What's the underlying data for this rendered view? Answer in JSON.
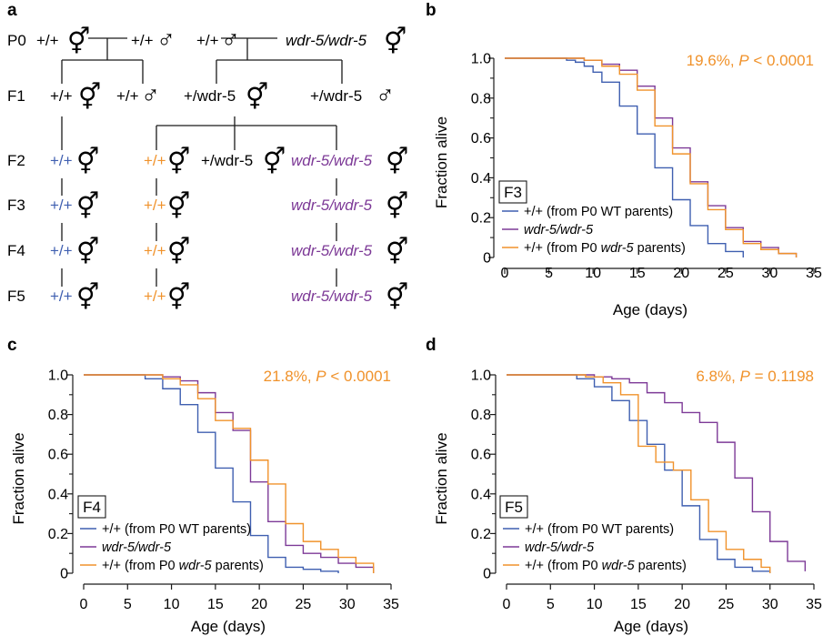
{
  "colors": {
    "wt": "#3f5fb0",
    "mut": "#7d3a97",
    "wtmut": "#f0922b",
    "stat": "#f0922b",
    "black": "#1a1a1a"
  },
  "panel_a": {
    "label": "a",
    "generations": [
      "P0",
      "F1",
      "F2",
      "F3",
      "F4",
      "F5"
    ],
    "p0": {
      "left_herm": "+/+",
      "left_male": "+/+",
      "right_male": "+/+",
      "right_herm": "wdr-5/wdr-5"
    },
    "f1": {
      "left_herm": "+/+",
      "left_male": "+/+",
      "right_herm": "+/wdr-5",
      "right_male": "+/wdr-5"
    },
    "f2": {
      "wt": "+/+",
      "wtmut": "+/+",
      "het": "+/wdr-5",
      "mut": "wdr-5/wdr-5"
    },
    "later": {
      "wt": "+/+",
      "wtmut": "+/+",
      "mut": "wdr-5/wdr-5"
    },
    "herm_symbol": "⚥",
    "male_symbol": "♂"
  },
  "chart_data": [
    {
      "panel": "b",
      "type": "line",
      "step": true,
      "xlabel": "Age (days)",
      "ylabel": "Fraction alive",
      "xlim": [
        0,
        35
      ],
      "ylim": [
        0,
        1.0
      ],
      "xticks": [
        "0",
        "5",
        "10",
        "15",
        "20",
        "25",
        "30",
        "35"
      ],
      "yticks": [
        "0",
        "0.2",
        "0.4",
        "0.6",
        "0.8",
        "1.0"
      ],
      "stat_pct": "19.6%, ",
      "stat_p": "P",
      "stat_rest": " < 0.0001",
      "box_label": "F3",
      "legend": [
        "+/+ (from P0 WT parents)",
        "wdr-5/wdr-5",
        "+/+ (from P0 ",
        "wdr-5",
        " parents)"
      ],
      "series": [
        {
          "key": "wt",
          "x": [
            0,
            7,
            8,
            9,
            10,
            11,
            13,
            15,
            17,
            19,
            21,
            23,
            25,
            27
          ],
          "y": [
            1.0,
            0.99,
            0.98,
            0.96,
            0.93,
            0.88,
            0.76,
            0.62,
            0.45,
            0.29,
            0.16,
            0.07,
            0.03,
            0.0
          ]
        },
        {
          "key": "mut",
          "x": [
            0,
            9,
            11,
            13,
            15,
            17,
            19,
            21,
            23,
            25,
            27,
            29,
            31,
            33
          ],
          "y": [
            1.0,
            0.99,
            0.97,
            0.94,
            0.86,
            0.7,
            0.55,
            0.38,
            0.26,
            0.15,
            0.08,
            0.05,
            0.02,
            0.0
          ]
        },
        {
          "key": "wtmut",
          "x": [
            0,
            9,
            11,
            13,
            15,
            17,
            19,
            21,
            23,
            25,
            27,
            29,
            31,
            33
          ],
          "y": [
            1.0,
            0.99,
            0.96,
            0.92,
            0.84,
            0.66,
            0.52,
            0.37,
            0.24,
            0.14,
            0.07,
            0.04,
            0.02,
            0.0
          ]
        }
      ]
    },
    {
      "panel": "c",
      "type": "line",
      "step": true,
      "xlabel": "Age (days)",
      "ylabel": "Fraction alive",
      "xlim": [
        0,
        35
      ],
      "ylim": [
        0,
        1.0
      ],
      "xticks": [
        "0",
        "5",
        "10",
        "15",
        "20",
        "25",
        "30",
        "35"
      ],
      "yticks": [
        "0",
        "0.2",
        "0.4",
        "0.6",
        "0.8",
        "1.0"
      ],
      "stat_pct": "21.8%, ",
      "stat_p": "P",
      "stat_rest": " < 0.0001",
      "box_label": "F4",
      "legend": [
        "+/+ (from P0 WT parents)",
        "wdr-5/wdr-5",
        "+/+ (from P0 ",
        "wdr-5",
        " parents)"
      ],
      "series": [
        {
          "key": "wt",
          "x": [
            0,
            7,
            9,
            11,
            13,
            15,
            17,
            19,
            21,
            23,
            25,
            27,
            29
          ],
          "y": [
            1.0,
            0.98,
            0.93,
            0.85,
            0.71,
            0.53,
            0.36,
            0.19,
            0.08,
            0.03,
            0.02,
            0.01,
            0.0
          ]
        },
        {
          "key": "mut",
          "x": [
            0,
            9,
            11,
            13,
            15,
            17,
            19,
            21,
            23,
            25,
            27,
            29,
            31,
            33
          ],
          "y": [
            1.0,
            0.99,
            0.97,
            0.91,
            0.81,
            0.72,
            0.46,
            0.26,
            0.14,
            0.1,
            0.08,
            0.05,
            0.03,
            0.0
          ]
        },
        {
          "key": "wtmut",
          "x": [
            0,
            9,
            11,
            13,
            15,
            17,
            19,
            21,
            23,
            25,
            27,
            29,
            31,
            33
          ],
          "y": [
            1.0,
            0.98,
            0.95,
            0.88,
            0.77,
            0.73,
            0.57,
            0.45,
            0.25,
            0.16,
            0.12,
            0.08,
            0.05,
            0.0
          ]
        }
      ]
    },
    {
      "panel": "d",
      "type": "line",
      "step": true,
      "xlabel": "Age (days)",
      "ylabel": "Fraction alive",
      "xlim": [
        0,
        35
      ],
      "ylim": [
        0,
        1.0
      ],
      "xticks": [
        "0",
        "5",
        "10",
        "15",
        "20",
        "25",
        "30",
        "35"
      ],
      "yticks": [
        "0",
        "0.2",
        "0.4",
        "0.6",
        "0.8",
        "1.0"
      ],
      "stat_pct": "6.8%, ",
      "stat_p": "P",
      "stat_rest": " = 0.1198",
      "box_label": "F5",
      "legend": [
        "+/+ (from P0 WT parents)",
        "wdr-5/wdr-5",
        "+/+ (from P0 ",
        "wdr-5",
        " parents)"
      ],
      "series": [
        {
          "key": "wt",
          "x": [
            0,
            8,
            10,
            12,
            14,
            16,
            18,
            20,
            22,
            24,
            26,
            28,
            30
          ],
          "y": [
            1.0,
            0.98,
            0.94,
            0.87,
            0.77,
            0.65,
            0.52,
            0.34,
            0.17,
            0.07,
            0.03,
            0.01,
            0.0
          ]
        },
        {
          "key": "mut",
          "x": [
            0,
            10,
            12,
            14,
            16,
            18,
            20,
            22,
            24,
            26,
            28,
            30,
            32,
            34
          ],
          "y": [
            1.0,
            0.99,
            0.98,
            0.96,
            0.91,
            0.86,
            0.81,
            0.76,
            0.66,
            0.48,
            0.31,
            0.16,
            0.06,
            0.01
          ]
        },
        {
          "key": "wtmut",
          "x": [
            0,
            9,
            11,
            13,
            15,
            17,
            19,
            21,
            23,
            25,
            27,
            29,
            30
          ],
          "y": [
            1.0,
            0.99,
            0.96,
            0.9,
            0.64,
            0.56,
            0.52,
            0.37,
            0.21,
            0.12,
            0.07,
            0.03,
            0.0
          ]
        }
      ]
    }
  ]
}
